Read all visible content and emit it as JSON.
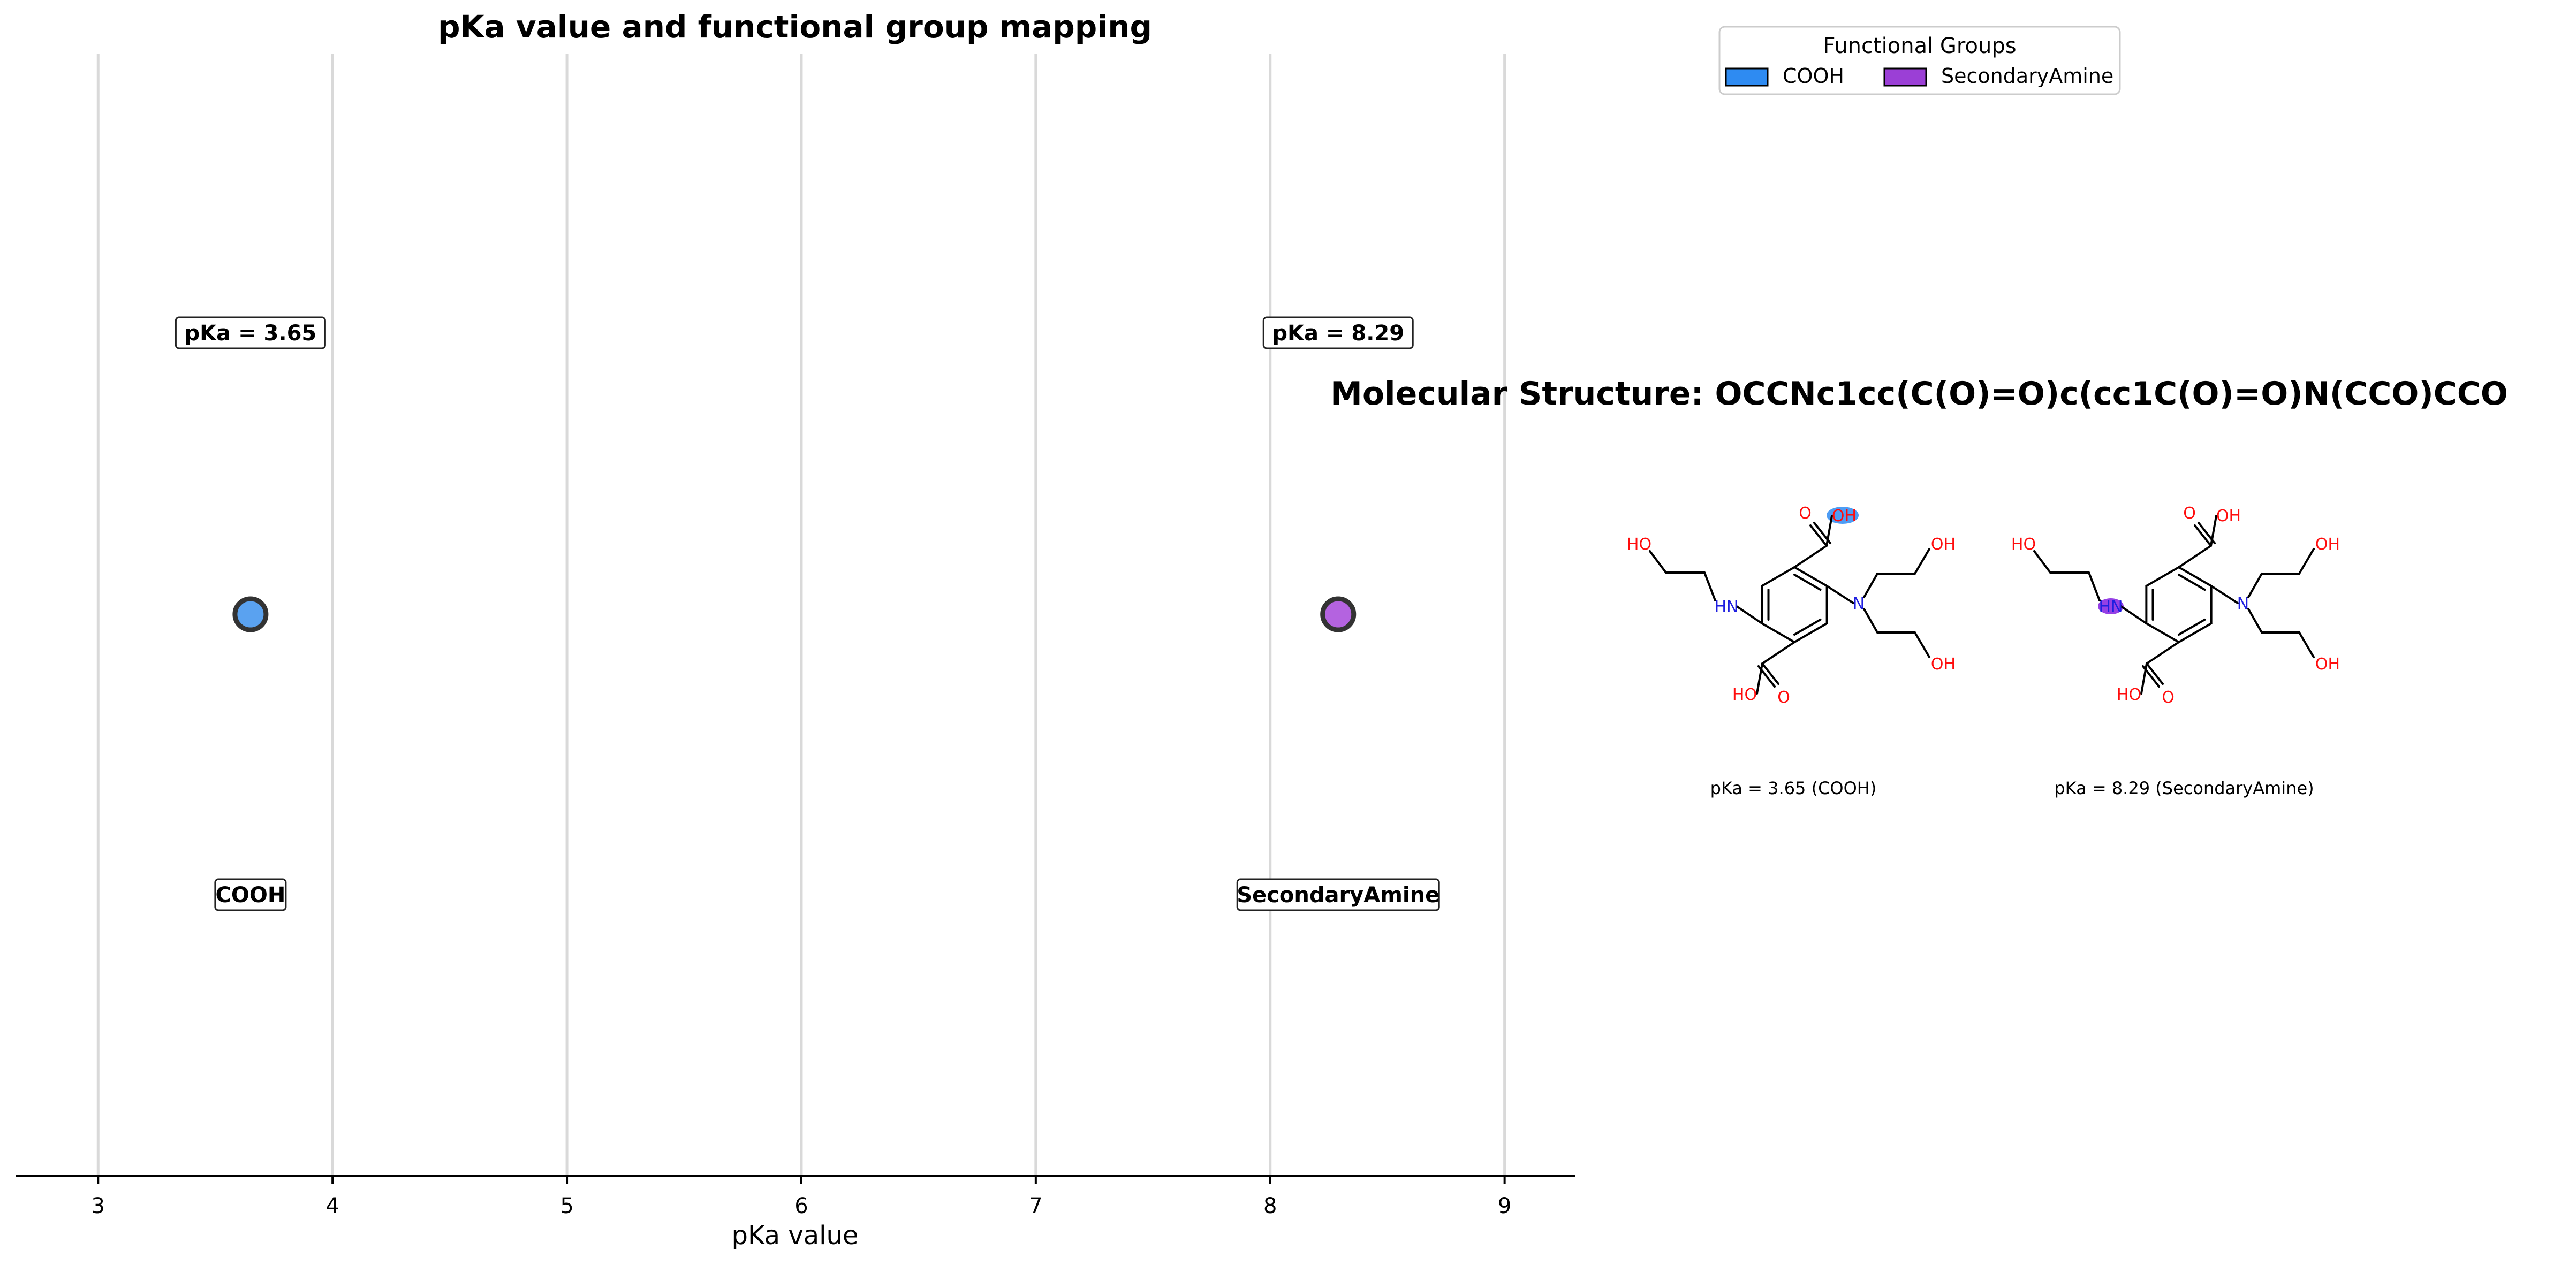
{
  "chart_data": {
    "type": "scatter",
    "title": "pKa value and functional group mapping",
    "xlabel": "pKa value",
    "ylabel": "",
    "xlim": [
      2.65,
      9.3
    ],
    "xticks": [
      3,
      4,
      5,
      6,
      7,
      8,
      9
    ],
    "grid": "vertical",
    "points": [
      {
        "x": 3.65,
        "group": "COOH",
        "pka_label": "pKa = 3.65",
        "color": "#5aa2f0"
      },
      {
        "x": 8.29,
        "group": "SecondaryAmine",
        "pka_label": "pKa = 8.29",
        "color": "#b463e0"
      }
    ],
    "legend": {
      "title": "Functional Groups",
      "placement": "top-right",
      "entries": [
        {
          "label": "COOH",
          "color": "#2e8bf2"
        },
        {
          "label": "SecondaryAmine",
          "color": "#9b3fd6"
        }
      ]
    }
  },
  "molecule": {
    "title": "Molecular Structure: OCCNc1cc(C(O)=O)c(cc1C(O)=O)N(CCO)CCO",
    "atoms": {
      "oh": "OH",
      "ho": "HO",
      "o": "O",
      "hn": "HN",
      "n": "N"
    },
    "panels": [
      {
        "caption": "pKa = 3.65 (COOH)",
        "highlight": "cooh",
        "color": "#2e8bf2"
      },
      {
        "caption": "pKa = 8.29 (SecondaryAmine)",
        "highlight": "amine",
        "color": "#8a2be2"
      }
    ]
  }
}
